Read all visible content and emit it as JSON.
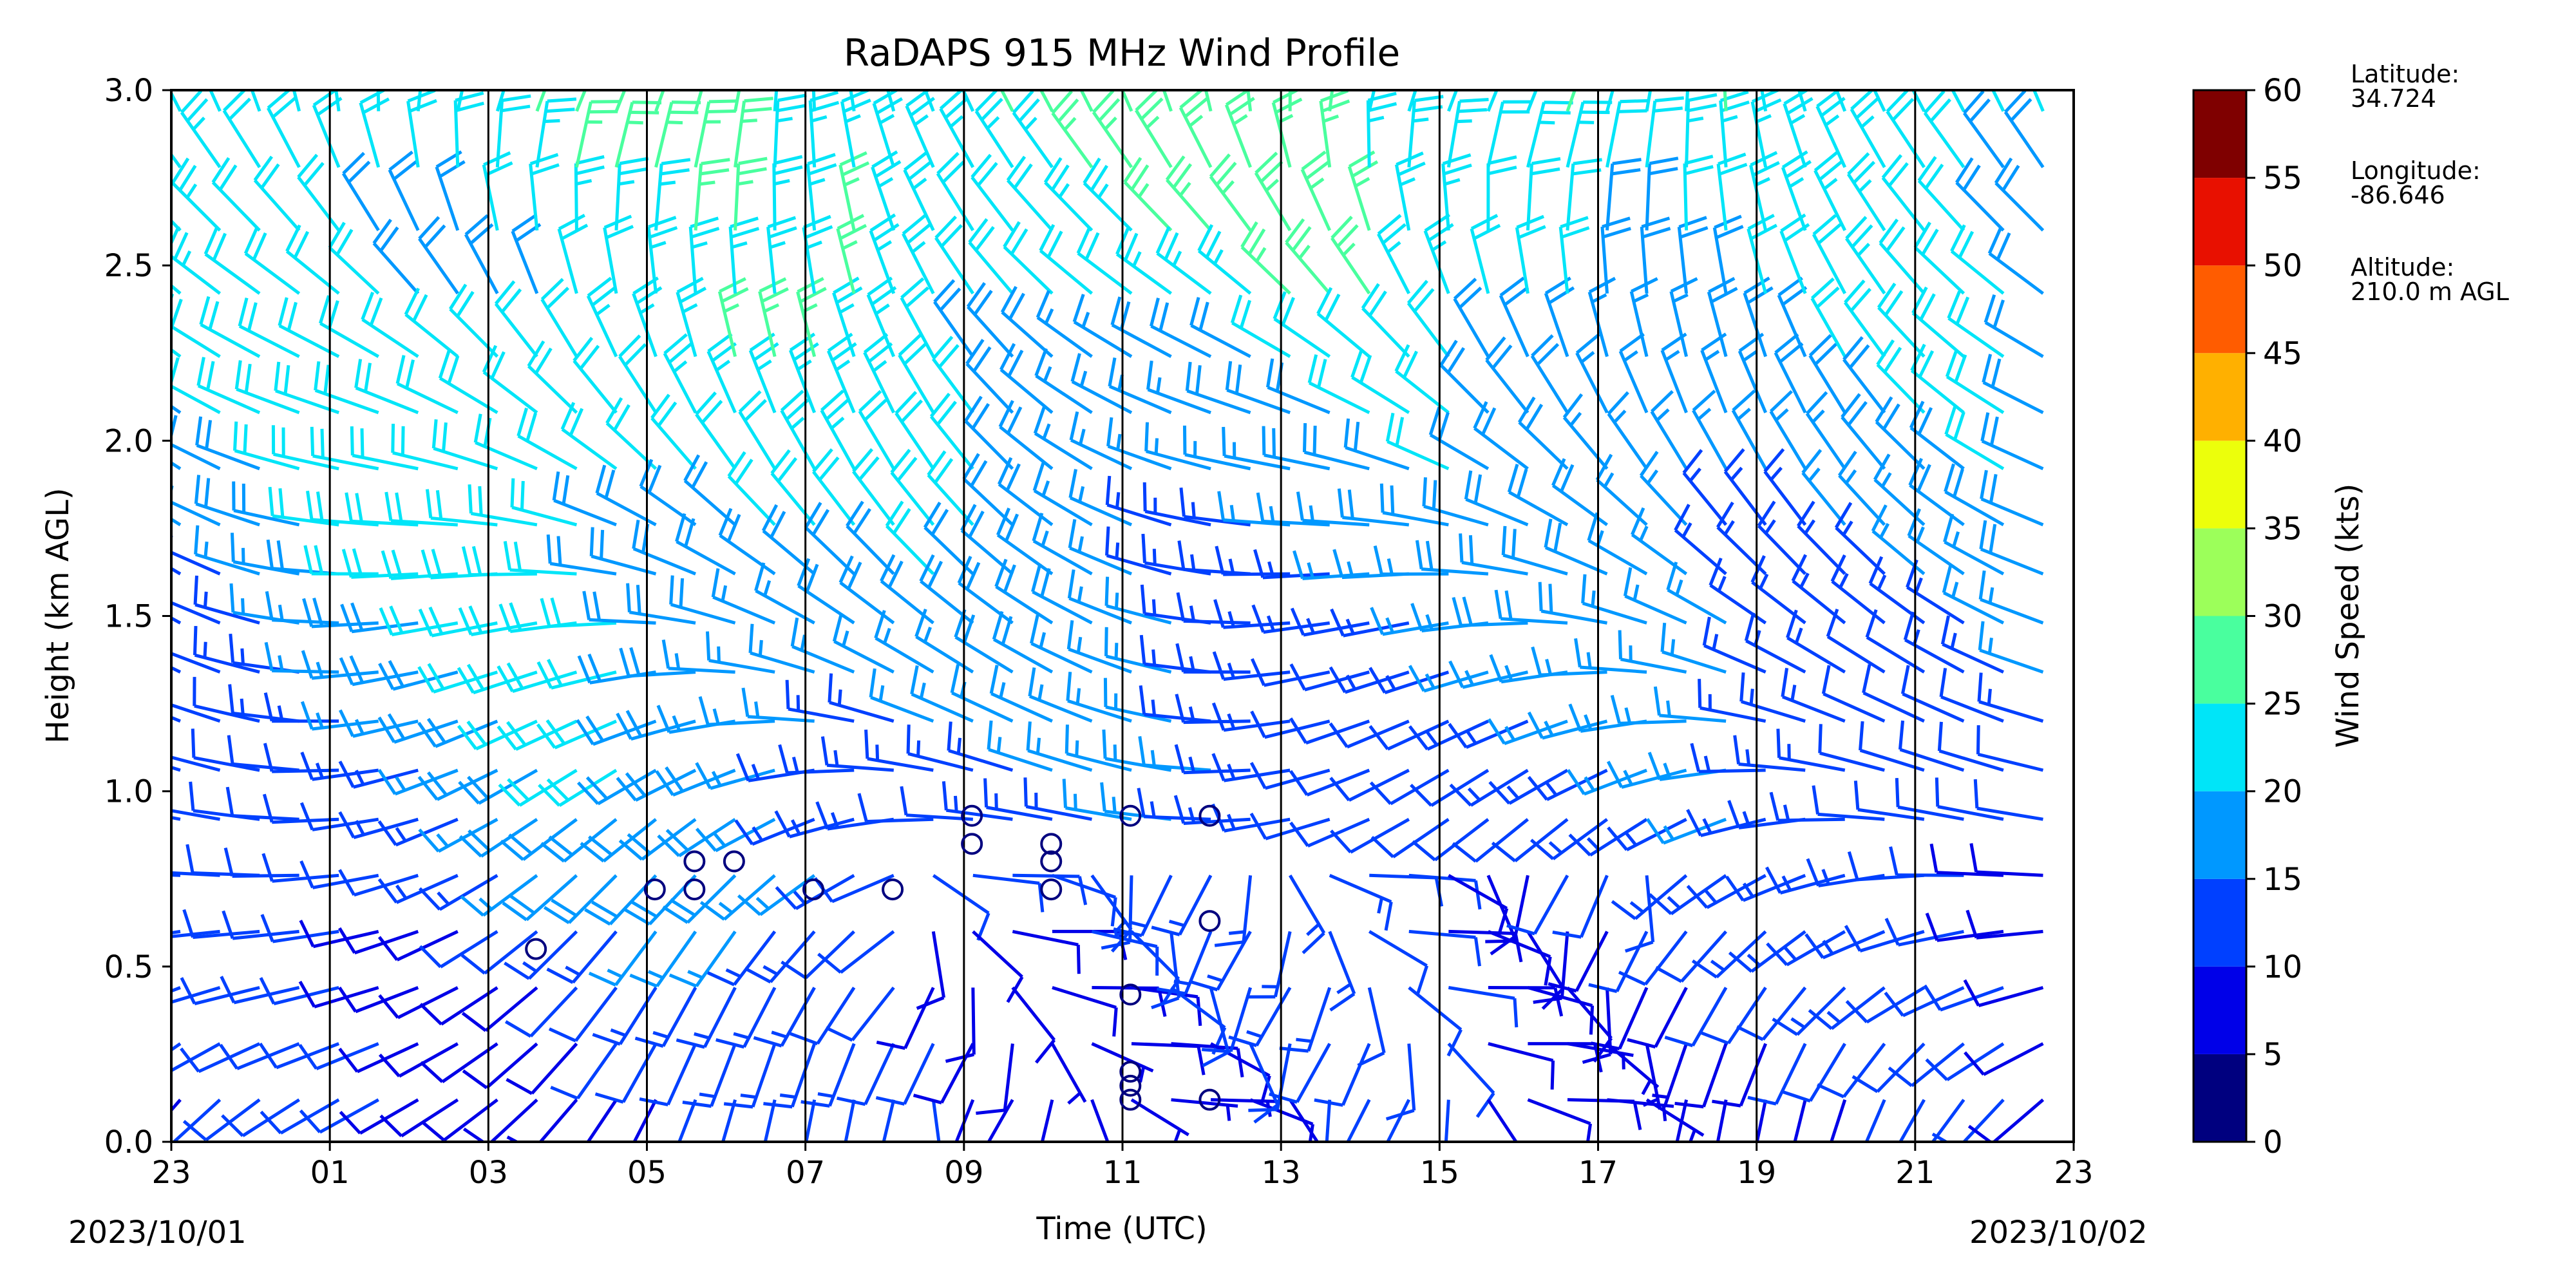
{
  "chart_data": {
    "type": "wind-barb-profile",
    "title": "RaDAPS 915 MHz Wind Profile",
    "xlabel": "Time (UTC)",
    "ylabel": "Height (km AGL)",
    "x_tick_labels": [
      "23",
      "01",
      "03",
      "05",
      "07",
      "09",
      "11",
      "13",
      "15",
      "17",
      "19",
      "21",
      "23"
    ],
    "x_start_date_label": "2023/10/01",
    "x_end_date_label": "2023/10/02",
    "y_ticks": [
      "0.0",
      "0.5",
      "1.0",
      "1.5",
      "2.0",
      "2.5",
      "3.0"
    ],
    "ylim": [
      0,
      3
    ],
    "xlim_hours": [
      23,
      47
    ],
    "grid": "vertical lines every 2 hours",
    "colorbar": {
      "label": "Wind Speed (kts)",
      "ticks": [
        "0",
        "5",
        "10",
        "15",
        "20",
        "25",
        "30",
        "35",
        "40",
        "45",
        "50",
        "55",
        "60"
      ],
      "range": [
        0,
        60
      ],
      "bands": [
        {
          "from": 0,
          "to": 5,
          "color": "#00007f"
        },
        {
          "from": 5,
          "to": 10,
          "color": "#0000e8"
        },
        {
          "from": 10,
          "to": 15,
          "color": "#0040ff"
        },
        {
          "from": 15,
          "to": 20,
          "color": "#0098ff"
        },
        {
          "from": 20,
          "to": 25,
          "color": "#00e5f8"
        },
        {
          "from": 25,
          "to": 30,
          "color": "#49ff9e"
        },
        {
          "from": 30,
          "to": 35,
          "color": "#9cff5a"
        },
        {
          "from": 35,
          "to": 40,
          "color": "#ecff0b"
        },
        {
          "from": 40,
          "to": 45,
          "color": "#ffb000"
        },
        {
          "from": 45,
          "to": 50,
          "color": "#ff5c00"
        },
        {
          "from": 50,
          "to": 55,
          "color": "#e81000"
        },
        {
          "from": 55,
          "to": 60,
          "color": "#7f0000"
        }
      ]
    },
    "profile_hours": [
      23,
      24,
      25,
      26,
      27,
      28,
      29,
      30,
      31,
      32,
      33,
      34,
      35,
      36,
      37,
      38,
      39,
      40,
      41,
      42,
      43,
      44,
      45,
      46
    ],
    "heights_km": [
      0.12,
      0.28,
      0.44,
      0.6,
      0.76,
      0.92,
      1.06,
      1.2,
      1.34,
      1.48,
      1.62,
      1.76,
      1.92,
      2.08,
      2.24,
      2.42,
      2.6,
      2.78,
      2.94
    ],
    "calm_points": [
      {
        "hour": 27.6,
        "height_km": 0.55
      },
      {
        "hour": 29.1,
        "height_km": 0.72
      },
      {
        "hour": 29.6,
        "height_km": 0.8
      },
      {
        "hour": 29.6,
        "height_km": 0.72
      },
      {
        "hour": 30.1,
        "height_km": 0.8
      },
      {
        "hour": 31.1,
        "height_km": 0.72
      },
      {
        "hour": 32.1,
        "height_km": 0.72
      },
      {
        "hour": 33.1,
        "height_km": 0.85
      },
      {
        "hour": 33.1,
        "height_km": 0.93
      },
      {
        "hour": 34.1,
        "height_km": 0.85
      },
      {
        "hour": 34.1,
        "height_km": 0.8
      },
      {
        "hour": 34.1,
        "height_km": 0.72
      },
      {
        "hour": 35.1,
        "height_km": 0.93
      },
      {
        "hour": 35.1,
        "height_km": 0.42
      },
      {
        "hour": 35.1,
        "height_km": 0.2
      },
      {
        "hour": 35.1,
        "height_km": 0.16
      },
      {
        "hour": 35.1,
        "height_km": 0.12
      },
      {
        "hour": 36.1,
        "height_km": 0.93
      },
      {
        "hour": 36.1,
        "height_km": 0.63
      },
      {
        "hour": 36.1,
        "height_km": 0.12
      }
    ]
  },
  "station": {
    "latitude_label": "Latitude:",
    "latitude_value": "34.724",
    "longitude_label": "Longitude:",
    "longitude_value": "-86.646",
    "altitude_label": "Altitude:",
    "altitude_value": "210.0 m AGL"
  }
}
